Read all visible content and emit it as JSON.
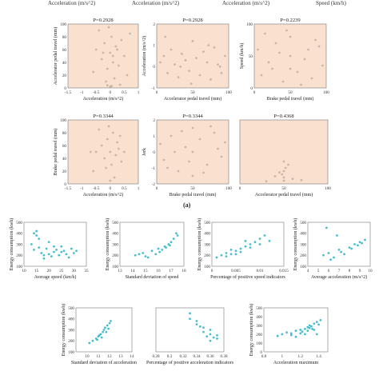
{
  "top_fragments": [
    {
      "text": "Acceleration (m/s^2)",
      "cls": "f1"
    },
    {
      "text": "Acceleration (m/s^2)",
      "cls": "f2"
    },
    {
      "text": "Acceleration (m/s^2)",
      "cls": "f3"
    },
    {
      "text": "Speed (km/h)",
      "cls": "f4"
    }
  ],
  "section_a_label": "(a)",
  "chart_data": [
    {
      "type": "scatter",
      "panel": "a1",
      "title": "P=0.2928",
      "xlabel": "Acceleration (m/s^2)",
      "ylabel": "Accelerator pedal travel (mm)",
      "xlim": [
        -1.5,
        1
      ],
      "ylim": [
        0,
        100
      ],
      "xticks": [
        "-1.5",
        "-1",
        "-0.5",
        "0",
        "0.5",
        "1"
      ],
      "yticks": [
        "0",
        "20",
        "40",
        "60",
        "80",
        "100"
      ],
      "points": [
        [
          -0.5,
          60
        ],
        [
          -0.3,
          45
        ],
        [
          -0.2,
          70
        ],
        [
          -0.1,
          30
        ],
        [
          0,
          55
        ],
        [
          0.05,
          80
        ],
        [
          0.1,
          40
        ],
        [
          0.2,
          65
        ],
        [
          0.3,
          35
        ],
        [
          0.4,
          75
        ],
        [
          0.5,
          50
        ],
        [
          0.6,
          20
        ],
        [
          0.7,
          85
        ],
        [
          -0.6,
          25
        ],
        [
          -0.4,
          90
        ],
        [
          0.15,
          15
        ],
        [
          -0.05,
          95
        ],
        [
          0.25,
          60
        ],
        [
          -0.15,
          10
        ],
        [
          0.35,
          5
        ],
        [
          0,
          2
        ],
        [
          0.05,
          3
        ],
        [
          -0.1,
          4
        ],
        [
          0.1,
          50
        ],
        [
          -0.25,
          55
        ]
      ]
    },
    {
      "type": "scatter",
      "panel": "a2",
      "title": "P=0.2928",
      "xlabel": "Accelerator pedal travel (mm)",
      "ylabel": "Acceleration (m/s^2)",
      "xlim": [
        0,
        100
      ],
      "ylim": [
        -1,
        2
      ],
      "xticks": [
        "0",
        "50",
        "100"
      ],
      "yticks": [
        "-1",
        "0",
        "1",
        "2"
      ],
      "points": [
        [
          5,
          0.2
        ],
        [
          10,
          0.5
        ],
        [
          15,
          -0.3
        ],
        [
          20,
          0.8
        ],
        [
          25,
          0.1
        ],
        [
          30,
          -0.5
        ],
        [
          35,
          0.6
        ],
        [
          40,
          0.3
        ],
        [
          45,
          -0.2
        ],
        [
          50,
          1.2
        ],
        [
          55,
          0.4
        ],
        [
          60,
          -0.4
        ],
        [
          65,
          0.7
        ],
        [
          70,
          0.2
        ],
        [
          75,
          -0.6
        ],
        [
          80,
          0.9
        ],
        [
          85,
          0.1
        ],
        [
          90,
          -0.3
        ],
        [
          95,
          0.5
        ],
        [
          12,
          1.4
        ],
        [
          48,
          -0.8
        ],
        [
          72,
          1.0
        ],
        [
          88,
          0.0
        ],
        [
          33,
          0.0
        ]
      ]
    },
    {
      "type": "scatter",
      "panel": "a3",
      "title": "P=0.2239",
      "xlabel": "Brake pedal travel (mm)",
      "ylabel": "Speed (km/h)",
      "xlim": [
        0,
        100
      ],
      "ylim": [
        0,
        100
      ],
      "xticks": [
        "0",
        "50",
        "100"
      ],
      "yticks": [
        "0",
        "50",
        "100"
      ],
      "points": [
        [
          5,
          60
        ],
        [
          10,
          20
        ],
        [
          20,
          40
        ],
        [
          30,
          70
        ],
        [
          40,
          10
        ],
        [
          50,
          50
        ],
        [
          50,
          30
        ],
        [
          50,
          80
        ],
        [
          60,
          25
        ],
        [
          70,
          45
        ],
        [
          80,
          15
        ],
        [
          90,
          65
        ],
        [
          95,
          35
        ],
        [
          15,
          85
        ],
        [
          35,
          55
        ],
        [
          65,
          5
        ],
        [
          85,
          75
        ],
        [
          25,
          30
        ],
        [
          75,
          60
        ],
        [
          45,
          90
        ]
      ]
    },
    {
      "type": "scatter",
      "panel": "a4",
      "title": "P=0.3344",
      "xlabel": "Acceleration (m/s^2)",
      "ylabel": "Brake pedal travel (mm)",
      "xlim": [
        -1.5,
        1
      ],
      "ylim": [
        0,
        100
      ],
      "xticks": [
        "-1.5",
        "-1",
        "-0.5",
        "0",
        "0.5",
        "1"
      ],
      "yticks": [
        "0",
        "20",
        "40",
        "60",
        "80",
        "100"
      ],
      "points": [
        [
          -0.5,
          50
        ],
        [
          -0.3,
          60
        ],
        [
          -0.2,
          40
        ],
        [
          -0.1,
          70
        ],
        [
          0,
          50
        ],
        [
          0.05,
          30
        ],
        [
          0.1,
          80
        ],
        [
          0.2,
          45
        ],
        [
          0.3,
          55
        ],
        [
          -0.6,
          20
        ],
        [
          -0.4,
          85
        ],
        [
          0.15,
          10
        ],
        [
          -0.05,
          90
        ],
        [
          0.25,
          65
        ],
        [
          0.4,
          35
        ],
        [
          -0.7,
          50
        ],
        [
          0.5,
          50
        ],
        [
          0,
          5
        ],
        [
          -0.15,
          25
        ],
        [
          0.35,
          75
        ]
      ]
    },
    {
      "type": "scatter",
      "panel": "a5",
      "title": "P=0.3344",
      "xlabel": "Brake pedal travel (mm)",
      "ylabel": "Jerk",
      "xlim": [
        0,
        100
      ],
      "ylim": [
        -2,
        2
      ],
      "xticks": [
        "0",
        "50",
        "100"
      ],
      "yticks": [
        "-2",
        "-1",
        "0",
        "1",
        "2"
      ],
      "points": [
        [
          5,
          0.5
        ],
        [
          10,
          -0.5
        ],
        [
          20,
          1.0
        ],
        [
          30,
          -1.2
        ],
        [
          40,
          0.3
        ],
        [
          50,
          1.5
        ],
        [
          50,
          -1.5
        ],
        [
          50,
          0.0
        ],
        [
          60,
          0.8
        ],
        [
          70,
          -0.8
        ],
        [
          80,
          1.2
        ],
        [
          90,
          -0.3
        ],
        [
          95,
          0.6
        ],
        [
          15,
          -1.0
        ],
        [
          35,
          1.3
        ],
        [
          65,
          -1.3
        ],
        [
          85,
          0.2
        ],
        [
          25,
          0.0
        ],
        [
          75,
          1.6
        ],
        [
          45,
          -0.6
        ]
      ]
    },
    {
      "type": "scatter",
      "panel": "a6",
      "title": "P=0.4368",
      "xlabel": "Accelerator pedal travel (mm)",
      "ylabel": "",
      "xlim": [
        0,
        100
      ],
      "ylim": [
        0,
        100
      ],
      "xticks": [
        "0",
        "50",
        "100"
      ],
      "yticks": [],
      "points": [
        [
          50,
          10
        ],
        [
          50,
          20
        ],
        [
          50,
          35
        ],
        [
          48,
          15
        ],
        [
          52,
          25
        ],
        [
          50,
          5
        ],
        [
          60,
          8
        ],
        [
          40,
          12
        ],
        [
          55,
          30
        ],
        [
          45,
          18
        ],
        [
          70,
          6
        ],
        [
          30,
          4
        ]
      ]
    },
    {
      "type": "scatter",
      "panel": "b1",
      "title": "",
      "xlabel": "Average speed (km/h)",
      "ylabel": "Energy consumption (kwh)",
      "xlim": [
        10,
        35
      ],
      "ylim": [
        100,
        500
      ],
      "xticks": [
        "10",
        "15",
        "20",
        "25",
        "30",
        "35"
      ],
      "yticks": [
        "100",
        "200",
        "300",
        "400",
        "500"
      ],
      "points": [
        [
          13,
          300
        ],
        [
          14,
          250
        ],
        [
          15,
          420
        ],
        [
          16,
          350
        ],
        [
          17,
          220
        ],
        [
          18,
          200
        ],
        [
          19,
          260
        ],
        [
          20,
          210
        ],
        [
          21,
          190
        ],
        [
          22,
          230
        ],
        [
          23,
          250
        ],
        [
          24,
          200
        ],
        [
          25,
          280
        ],
        [
          26,
          240
        ],
        [
          27,
          210
        ],
        [
          28,
          180
        ],
        [
          29,
          260
        ],
        [
          30,
          220
        ],
        [
          31,
          240
        ],
        [
          15,
          380
        ],
        [
          16,
          270
        ],
        [
          20,
          320
        ],
        [
          25,
          230
        ],
        [
          18,
          170
        ],
        [
          22,
          280
        ],
        [
          14,
          400
        ]
      ]
    },
    {
      "type": "scatter",
      "panel": "b2",
      "title": "",
      "xlabel": "Standard deviation of speed",
      "ylabel": "Energy consumption (kwh)",
      "xlim": [
        13,
        18
      ],
      "ylim": [
        100,
        500
      ],
      "xticks": [
        "13",
        "14",
        "15",
        "16",
        "17",
        "18"
      ],
      "yticks": [
        "100",
        "200",
        "300",
        "400",
        "500"
      ],
      "points": [
        [
          14.2,
          200
        ],
        [
          14.8,
          220
        ],
        [
          15.2,
          180
        ],
        [
          15.5,
          240
        ],
        [
          15.8,
          210
        ],
        [
          16.0,
          260
        ],
        [
          16.3,
          250
        ],
        [
          16.5,
          280
        ],
        [
          16.8,
          300
        ],
        [
          17.0,
          320
        ],
        [
          17.2,
          350
        ],
        [
          17.4,
          400
        ],
        [
          15.0,
          190
        ],
        [
          16.1,
          230
        ],
        [
          16.6,
          270
        ],
        [
          14.5,
          210
        ],
        [
          17.5,
          380
        ],
        [
          16.9,
          290
        ]
      ]
    },
    {
      "type": "scatter",
      "panel": "b3",
      "title": "",
      "xlabel": "Percentage of positive speed indicators",
      "ylabel": "Energy consumption (kwh)",
      "xlim": [
        0,
        0.015
      ],
      "ylim": [
        100,
        500
      ],
      "xticks": [
        "0",
        "0.005",
        "0.01",
        "0.015"
      ],
      "yticks": [
        "100",
        "200",
        "300",
        "400",
        "500"
      ],
      "points": [
        [
          0.001,
          180
        ],
        [
          0.002,
          200
        ],
        [
          0.003,
          220
        ],
        [
          0.004,
          210
        ],
        [
          0.005,
          240
        ],
        [
          0.006,
          260
        ],
        [
          0.007,
          280
        ],
        [
          0.008,
          300
        ],
        [
          0.009,
          320
        ],
        [
          0.01,
          350
        ],
        [
          0.011,
          380
        ],
        [
          0.012,
          330
        ],
        [
          0.003,
          190
        ],
        [
          0.006,
          230
        ],
        [
          0.008,
          270
        ],
        [
          0.005,
          210
        ],
        [
          0.01,
          300
        ],
        [
          0.004,
          250
        ],
        [
          0.007,
          330
        ]
      ]
    },
    {
      "type": "scatter",
      "panel": "b4",
      "title": "",
      "xlabel": "Average acceleration (m/s^2)",
      "ylabel": "Energy consumption (kwh)",
      "xlim": [
        4,
        10
      ],
      "ylim": [
        100,
        500
      ],
      "xticks": [
        "4",
        "5",
        "6",
        "7",
        "8",
        "9",
        "10"
      ],
      "yticks": [
        "100",
        "200",
        "300",
        "400",
        "500"
      ],
      "points": [
        [
          5.5,
          200
        ],
        [
          6,
          220
        ],
        [
          6.5,
          180
        ],
        [
          7,
          250
        ],
        [
          7.5,
          210
        ],
        [
          8,
          270
        ],
        [
          8.5,
          300
        ],
        [
          9,
          320
        ],
        [
          9.5,
          340
        ],
        [
          6.2,
          160
        ],
        [
          7.2,
          230
        ],
        [
          8.2,
          260
        ],
        [
          8.8,
          290
        ],
        [
          9.2,
          310
        ],
        [
          5.8,
          450
        ],
        [
          6.8,
          380
        ]
      ]
    },
    {
      "type": "scatter",
      "panel": "b5",
      "title": "",
      "xlabel": "Standard deviation of acceleration",
      "ylabel": "Energy consumption (kwh)",
      "xlim": [
        9,
        14
      ],
      "ylim": [
        100,
        500
      ],
      "xticks": [
        "10",
        "11",
        "12",
        "13",
        "14"
      ],
      "yticks": [
        "100",
        "200",
        "300",
        "400",
        "500"
      ],
      "points": [
        [
          10.2,
          180
        ],
        [
          10.5,
          200
        ],
        [
          10.8,
          220
        ],
        [
          11.0,
          240
        ],
        [
          11.2,
          260
        ],
        [
          11.4,
          280
        ],
        [
          11.5,
          300
        ],
        [
          11.6,
          320
        ],
        [
          11.8,
          340
        ],
        [
          12.0,
          360
        ],
        [
          11.3,
          230
        ],
        [
          11.7,
          280
        ],
        [
          10.9,
          210
        ],
        [
          11.1,
          250
        ],
        [
          12.1,
          380
        ],
        [
          11.9,
          310
        ]
      ]
    },
    {
      "type": "scatter",
      "panel": "b6",
      "title": "",
      "xlabel": "Percentage of positive acceleration indicators",
      "ylabel": "",
      "xlim": [
        0.28,
        0.38
      ],
      "ylim": [
        100,
        500
      ],
      "xticks": [
        "0.28",
        "0.3",
        "0.32",
        "0.34",
        "0.36",
        "0.38"
      ],
      "yticks": [],
      "points": [
        [
          0.33,
          450
        ],
        [
          0.34,
          380
        ],
        [
          0.35,
          320
        ],
        [
          0.36,
          300
        ],
        [
          0.36,
          260
        ],
        [
          0.355,
          240
        ],
        [
          0.37,
          220
        ],
        [
          0.34,
          350
        ],
        [
          0.35,
          280
        ],
        [
          0.36,
          200
        ],
        [
          0.33,
          400
        ],
        [
          0.345,
          330
        ],
        [
          0.365,
          230
        ],
        [
          0.37,
          250
        ]
      ]
    },
    {
      "type": "scatter",
      "panel": "b7",
      "title": "",
      "xlabel": "Acceleration maximum",
      "ylabel": "Energy consumption (kwh)",
      "xlim": [
        0.8,
        1.5
      ],
      "ylim": [
        0,
        500
      ],
      "xticks": [
        "0.8",
        "1",
        "1.2",
        "1.4"
      ],
      "yticks": [
        "0",
        "100",
        "200",
        "300",
        "400",
        "500"
      ],
      "points": [
        [
          0.95,
          180
        ],
        [
          1.0,
          200
        ],
        [
          1.05,
          220
        ],
        [
          1.1,
          210
        ],
        [
          1.15,
          240
        ],
        [
          1.2,
          250
        ],
        [
          1.22,
          230
        ],
        [
          1.25,
          260
        ],
        [
          1.28,
          280
        ],
        [
          1.3,
          300
        ],
        [
          1.32,
          290
        ],
        [
          1.35,
          320
        ],
        [
          1.38,
          340
        ],
        [
          1.4,
          310
        ],
        [
          1.1,
          190
        ],
        [
          1.2,
          210
        ],
        [
          1.3,
          270
        ],
        [
          1.25,
          200
        ],
        [
          1.35,
          250
        ],
        [
          1.42,
          360
        ],
        [
          1.15,
          170
        ],
        [
          1.28,
          240
        ],
        [
          1.33,
          260
        ],
        [
          1.38,
          200
        ]
      ]
    }
  ]
}
